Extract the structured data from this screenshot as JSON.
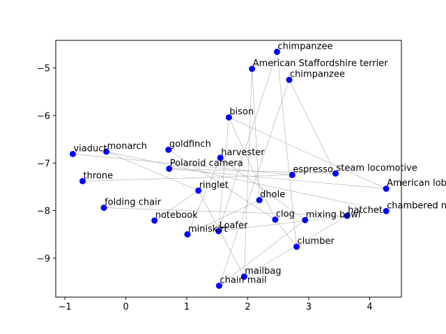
{
  "chart_data": {
    "type": "scatter",
    "title": "",
    "xlabel": "",
    "ylabel": "",
    "xlim": [
      -1.15,
      4.52
    ],
    "ylim": [
      -9.82,
      -4.42
    ],
    "xticks": [
      -1,
      0,
      1,
      2,
      3,
      4
    ],
    "yticks": [
      -5,
      -6,
      -7,
      -8,
      -9
    ],
    "grid": false,
    "legend": "none",
    "point_color": "#0000ff",
    "edge_color": "#aaaaaa",
    "points": [
      {
        "label": "chimpanzee",
        "x": 2.48,
        "y": -4.66
      },
      {
        "label": "American Staffordshire terrier",
        "x": 2.07,
        "y": -5.02
      },
      {
        "label": "chimpanzee",
        "x": 2.68,
        "y": -5.25
      },
      {
        "label": "bison",
        "x": 1.69,
        "y": -6.04
      },
      {
        "label": "goldfinch",
        "x": 0.7,
        "y": -6.72
      },
      {
        "label": "harvester",
        "x": 1.55,
        "y": -6.89
      },
      {
        "label": "viaduct",
        "x": -0.87,
        "y": -6.81
      },
      {
        "label": "monarch",
        "x": -0.32,
        "y": -6.76
      },
      {
        "label": "Polaroid camera",
        "x": 0.71,
        "y": -7.12
      },
      {
        "label": "espresso",
        "x": 2.73,
        "y": -7.25
      },
      {
        "label": "steam locomotive",
        "x": 3.44,
        "y": -7.22
      },
      {
        "label": "throne",
        "x": -0.71,
        "y": -7.38
      },
      {
        "label": "American lobster",
        "x": 4.27,
        "y": -7.54
      },
      {
        "label": "ringlet",
        "x": 1.19,
        "y": -7.58
      },
      {
        "label": "dhole",
        "x": 2.19,
        "y": -7.78
      },
      {
        "label": "folding chair",
        "x": -0.36,
        "y": -7.94
      },
      {
        "label": "chambered nautilus",
        "x": 4.27,
        "y": -8.01
      },
      {
        "label": "hatchet",
        "x": 3.63,
        "y": -8.11
      },
      {
        "label": "notebook",
        "x": 0.47,
        "y": -8.21
      },
      {
        "label": "clog",
        "x": 2.45,
        "y": -8.19
      },
      {
        "label": "mixing bowl",
        "x": 2.94,
        "y": -8.2
      },
      {
        "label": "Loafer",
        "x": 1.52,
        "y": -8.43
      },
      {
        "label": "miniskirt",
        "x": 1.01,
        "y": -8.5
      },
      {
        "label": "clumber",
        "x": 2.8,
        "y": -8.76
      },
      {
        "label": "mailbag",
        "x": 1.94,
        "y": -9.39
      },
      {
        "label": "chain mail",
        "x": 1.53,
        "y": -9.58
      }
    ],
    "edges": [
      [
        0,
        21
      ],
      [
        0,
        23
      ],
      [
        1,
        24
      ],
      [
        1,
        14
      ],
      [
        2,
        10
      ],
      [
        2,
        25
      ],
      [
        3,
        21
      ],
      [
        3,
        12
      ],
      [
        4,
        19
      ],
      [
        5,
        20
      ],
      [
        6,
        9
      ],
      [
        7,
        13
      ],
      [
        7,
        16
      ],
      [
        8,
        10
      ],
      [
        8,
        12
      ],
      [
        11,
        9
      ],
      [
        13,
        18
      ],
      [
        13,
        24
      ],
      [
        14,
        22
      ],
      [
        15,
        17
      ],
      [
        17,
        21
      ],
      [
        19,
        23
      ],
      [
        20,
        25
      ],
      [
        24,
        17
      ],
      [
        5,
        22
      ],
      [
        3,
        19
      ]
    ]
  }
}
